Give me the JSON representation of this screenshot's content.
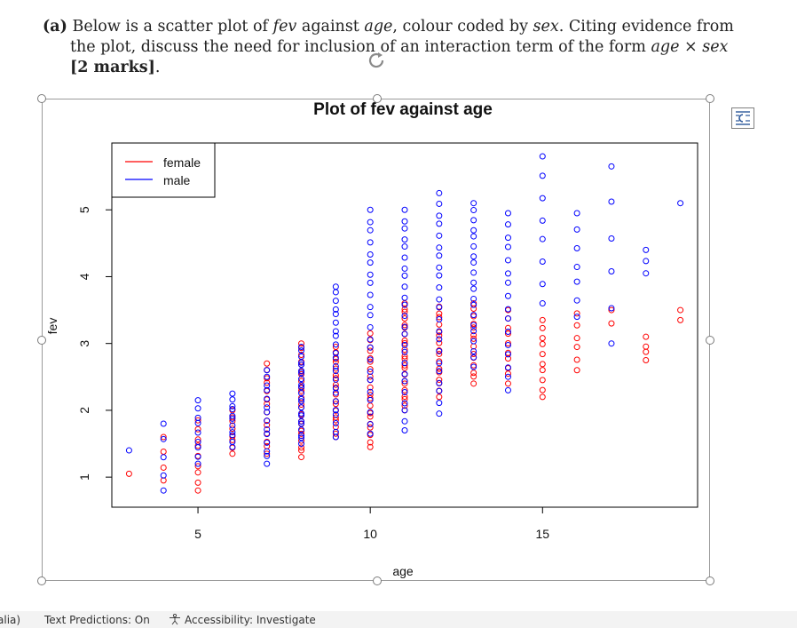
{
  "question": {
    "label": "(a)",
    "line1": "Below is a scatter plot of ",
    "fev": "fev",
    "against": " against ",
    "age": "age",
    "colour_coded": ", colour coded by ",
    "sex": "sex",
    "citing": ". Citing evidence from",
    "line2": "the plot, discuss the need for inclusion of an interaction term of the form ",
    "term": "age × sex",
    "marks": "[2 marks]",
    "period": "."
  },
  "chart_data": {
    "type": "scatter",
    "title": "Plot of fev against age",
    "xlabel": "age",
    "ylabel": "fev",
    "xlim": [
      2.5,
      19.5
    ],
    "ylim": [
      0.55,
      6.0
    ],
    "xticks": [
      5,
      10,
      15
    ],
    "yticks": [
      1,
      2,
      3,
      4,
      5
    ],
    "grid": false,
    "legend": {
      "placement": "top-left",
      "entries": [
        {
          "name": "female",
          "color": "#ff0000"
        },
        {
          "name": "male",
          "color": "#0000ff"
        }
      ]
    },
    "series": [
      {
        "name": "female",
        "color": "#ff0000",
        "ranges": [
          {
            "age": 3,
            "min": 1.05,
            "max": 1.05,
            "n": 1
          },
          {
            "age": 4,
            "min": 0.95,
            "max": 1.6,
            "n": 4
          },
          {
            "age": 5,
            "min": 0.8,
            "max": 1.85,
            "n": 9
          },
          {
            "age": 6,
            "min": 1.35,
            "max": 2.0,
            "n": 8
          },
          {
            "age": 7,
            "min": 1.35,
            "max": 2.7,
            "n": 14
          },
          {
            "age": 8,
            "min": 1.3,
            "max": 3.0,
            "n": 22
          },
          {
            "age": 9,
            "min": 1.6,
            "max": 2.95,
            "n": 18
          },
          {
            "age": 10,
            "min": 1.45,
            "max": 3.15,
            "n": 20
          },
          {
            "age": 11,
            "min": 2.0,
            "max": 3.6,
            "n": 22
          },
          {
            "age": 12,
            "min": 2.2,
            "max": 3.55,
            "n": 16
          },
          {
            "age": 13,
            "min": 2.4,
            "max": 3.6,
            "n": 14
          },
          {
            "age": 14,
            "min": 2.4,
            "max": 3.5,
            "n": 10
          },
          {
            "age": 15,
            "min": 2.2,
            "max": 3.35,
            "n": 10
          },
          {
            "age": 16,
            "min": 2.6,
            "max": 3.45,
            "n": 6
          },
          {
            "age": 17,
            "min": 3.3,
            "max": 3.5,
            "n": 2
          },
          {
            "age": 18,
            "min": 2.75,
            "max": 3.1,
            "n": 4
          },
          {
            "age": 19,
            "min": 3.35,
            "max": 3.5,
            "n": 2
          }
        ]
      },
      {
        "name": "male",
        "color": "#0000ff",
        "ranges": [
          {
            "age": 3,
            "min": 1.4,
            "max": 1.4,
            "n": 1
          },
          {
            "age": 4,
            "min": 0.8,
            "max": 1.8,
            "n": 5
          },
          {
            "age": 5,
            "min": 1.2,
            "max": 2.15,
            "n": 9
          },
          {
            "age": 6,
            "min": 1.45,
            "max": 2.25,
            "n": 11
          },
          {
            "age": 7,
            "min": 1.2,
            "max": 2.6,
            "n": 14
          },
          {
            "age": 8,
            "min": 1.5,
            "max": 2.95,
            "n": 22
          },
          {
            "age": 9,
            "min": 1.6,
            "max": 3.85,
            "n": 22
          },
          {
            "age": 10,
            "min": 1.65,
            "max": 5.0,
            "n": 22
          },
          {
            "age": 11,
            "min": 1.7,
            "max": 5.0,
            "n": 24
          },
          {
            "age": 12,
            "min": 1.95,
            "max": 5.25,
            "n": 22
          },
          {
            "age": 13,
            "min": 2.65,
            "max": 5.1,
            "n": 20
          },
          {
            "age": 14,
            "min": 2.3,
            "max": 4.95,
            "n": 16
          },
          {
            "age": 15,
            "min": 3.6,
            "max": 5.8,
            "n": 8
          },
          {
            "age": 16,
            "min": 3.4,
            "max": 4.95,
            "n": 7
          },
          {
            "age": 17,
            "min": 3.0,
            "max": 5.65,
            "n": 6
          },
          {
            "age": 18,
            "min": 4.05,
            "max": 4.4,
            "n": 3
          },
          {
            "age": 19,
            "min": 5.1,
            "max": 5.1,
            "n": 1
          }
        ]
      }
    ]
  },
  "status_bar": {
    "language": "alia)",
    "text_predictions": "Text Predictions: On",
    "accessibility": "Accessibility: Investigate"
  }
}
